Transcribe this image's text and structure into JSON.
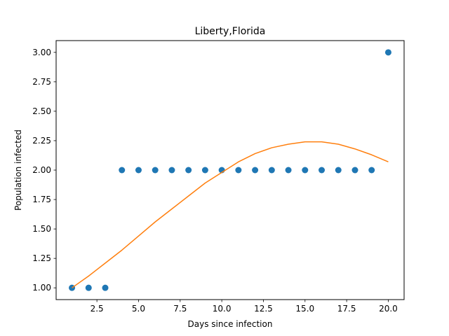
{
  "chart_data": {
    "type": "scatter",
    "title": "Liberty,Florida",
    "xlabel": "Days since infection",
    "ylabel": "Population infected",
    "xlim": [
      0.05,
      20.95
    ],
    "ylim": [
      0.9,
      3.1
    ],
    "xticks": [
      2.5,
      5.0,
      7.5,
      10.0,
      12.5,
      15.0,
      17.5,
      20.0
    ],
    "xtick_labels": [
      "2.5",
      "5.0",
      "7.5",
      "10.0",
      "12.5",
      "15.0",
      "17.5",
      "20.0"
    ],
    "yticks": [
      1.0,
      1.25,
      1.5,
      1.75,
      2.0,
      2.25,
      2.5,
      2.75,
      3.0
    ],
    "ytick_labels": [
      "1.00",
      "1.25",
      "1.50",
      "1.75",
      "2.00",
      "2.25",
      "2.50",
      "2.75",
      "3.00"
    ],
    "grid": false,
    "series": [
      {
        "kind": "scatter",
        "color": "#1f77b4",
        "x": [
          1,
          2,
          3,
          4,
          5,
          6,
          7,
          8,
          9,
          10,
          11,
          12,
          13,
          14,
          15,
          16,
          17,
          18,
          19,
          20
        ],
        "y": [
          1,
          1,
          1,
          2,
          2,
          2,
          2,
          2,
          2,
          2,
          2,
          2,
          2,
          2,
          2,
          2,
          2,
          2,
          2,
          3
        ]
      },
      {
        "kind": "line",
        "color": "#ff7f0e",
        "x": [
          1,
          2,
          3,
          4,
          5,
          6,
          7,
          8,
          9,
          10,
          11,
          12,
          13,
          14,
          15,
          16,
          17,
          18,
          19,
          20
        ],
        "y": [
          1.0,
          1.1,
          1.21,
          1.32,
          1.44,
          1.56,
          1.67,
          1.78,
          1.89,
          1.98,
          2.07,
          2.14,
          2.19,
          2.22,
          2.24,
          2.24,
          2.22,
          2.18,
          2.13,
          2.07
        ]
      }
    ]
  }
}
